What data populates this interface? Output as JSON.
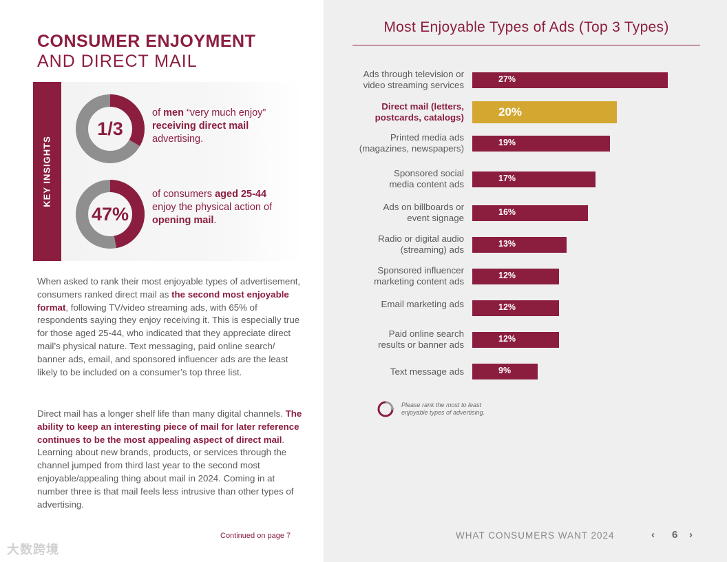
{
  "left": {
    "title_line1": "CONSUMER ENJOYMENT",
    "title_line2": "AND DIRECT MAIL",
    "insights_tab": "KEY INSIGHTS",
    "insight1": {
      "stat": "1/3",
      "fraction": 0.333,
      "t1": "of ",
      "b1": "men",
      "t2": " “very much enjoy” ",
      "b2": "receiving direct mail",
      "t3": " advertising."
    },
    "insight2": {
      "stat": "47%",
      "fraction": 0.47,
      "t1": "of consumers ",
      "b1": "aged 25-44",
      "t2": " enjoy the physical action of ",
      "b2": "opening mail",
      "t3": "."
    },
    "para1": {
      "a": "When asked to rank their most enjoyable types of advertisement, consumers ranked direct mail as ",
      "b": "the second most enjoyable format",
      "c": ", following TV/video streaming ads, with 65% of respondents saying they enjoy receiving it. This is especially true for those aged 25-44, who indicated that they appreciate direct mail’s physical nature. Text messaging, paid online search/ banner ads, email, and sponsored influencer ads are the least likely to be included on a consumer’s top three list."
    },
    "para2": {
      "a": "Direct mail has a longer shelf life than many digital channels. ",
      "b": "The ability to keep an interesting piece of mail for later reference continues to be the most appealing aspect of direct mail",
      "c": ". Learning about new brands, products, or services through the channel jumped from third last year to the second most enjoyable/appealing thing about mail in 2024. Coming in at number three is that mail feels less intrusive than other types of advertising."
    },
    "continued": "Continued on page 7",
    "watermark": "大数跨境"
  },
  "chart_data": {
    "type": "bar",
    "orientation": "horizontal",
    "title": "Most Enjoyable Types of Ads (Top 3 Types)",
    "categories": [
      [
        "Ads through television or",
        "video streaming services"
      ],
      [
        "Direct mail (letters,",
        "postcards, catalogs)"
      ],
      [
        "Printed media ads",
        "(magazines, newspapers)"
      ],
      [
        "Sponsored social",
        "media content ads"
      ],
      [
        "Ads on billboards or",
        "event signage"
      ],
      [
        "Radio or digital audio",
        "(streaming) ads"
      ],
      [
        "Sponsored influencer",
        "marketing content ads"
      ],
      [
        "Email marketing ads"
      ],
      [
        "Paid online search",
        "results or banner ads"
      ],
      [
        "Text message ads"
      ]
    ],
    "values": [
      27,
      20,
      19,
      17,
      16,
      13,
      12,
      12,
      12,
      9
    ],
    "value_labels": [
      "27%",
      "20%",
      "19%",
      "17%",
      "16%",
      "13%",
      "12%",
      "12%",
      "12%",
      "9%"
    ],
    "highlight_index": 1,
    "unit": "%",
    "xlim": [
      0,
      30
    ],
    "note": [
      "Please rank the most to least",
      "enjoyable types of advertising."
    ]
  },
  "colors": {
    "accent": "#8b1e3f",
    "highlight": "#d4a731"
  },
  "footer": {
    "title": "WHAT CONSUMERS WANT 2024",
    "page": "6",
    "prev": "‹",
    "next": "›"
  }
}
